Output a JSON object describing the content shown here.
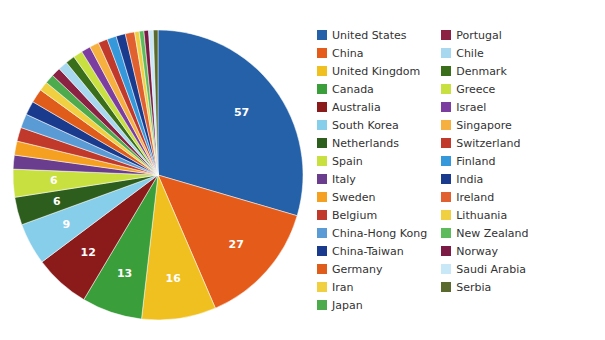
{
  "chart_data": {
    "type": "pie",
    "categories": [
      "United States",
      "China",
      "United Kingdom",
      "Canada",
      "Australia",
      "South Korea",
      "Netherlands",
      "Spain",
      "Italy",
      "Sweden",
      "Belgium",
      "China-Hong Kong",
      "China-Taiwan",
      "Germany",
      "Iran",
      "Japan",
      "Portugal",
      "Chile",
      "Denmark",
      "Greece",
      "Israel",
      "Singapore",
      "Switzerland",
      "Finland",
      "India",
      "Ireland",
      "Lithuania",
      "New Zealand",
      "Norway",
      "Saudi Arabia",
      "Serbia"
    ],
    "values": [
      57,
      27,
      16,
      13,
      12,
      9,
      6,
      6,
      3,
      3,
      3,
      3,
      3,
      3,
      2,
      2,
      2,
      2,
      2,
      2,
      2,
      2,
      2,
      2,
      2,
      2,
      1,
      1,
      1,
      1,
      1
    ],
    "value_labels": [
      "57",
      "27",
      "16",
      "13",
      "12",
      "9",
      "6",
      "6",
      null,
      null,
      null,
      null,
      null,
      null,
      null,
      null,
      null,
      null,
      null,
      null,
      null,
      null,
      null,
      null,
      null,
      null,
      null,
      null,
      null,
      null,
      null
    ],
    "colors": [
      "#2461a8",
      "#e55b1a",
      "#f0c020",
      "#3a9e3a",
      "#8b1a1a",
      "#87ceeb",
      "#2e5e1e",
      "#c8e040",
      "#6a3d8f",
      "#f5a020",
      "#c0392b",
      "#5b9bd5",
      "#1a3a8e",
      "#e05c1a",
      "#f0d040",
      "#4dab4d",
      "#8b2244",
      "#a8d8f0",
      "#3a6e1a",
      "#c8e040",
      "#7b3d9f",
      "#f5b040",
      "#c0392b",
      "#3498db",
      "#1a3a8e",
      "#e06030",
      "#f0d040",
      "#5dbb5d",
      "#7b1a44",
      "#c8e8f8",
      "#5a6a2e"
    ],
    "data_labels": true,
    "legend": "right"
  }
}
